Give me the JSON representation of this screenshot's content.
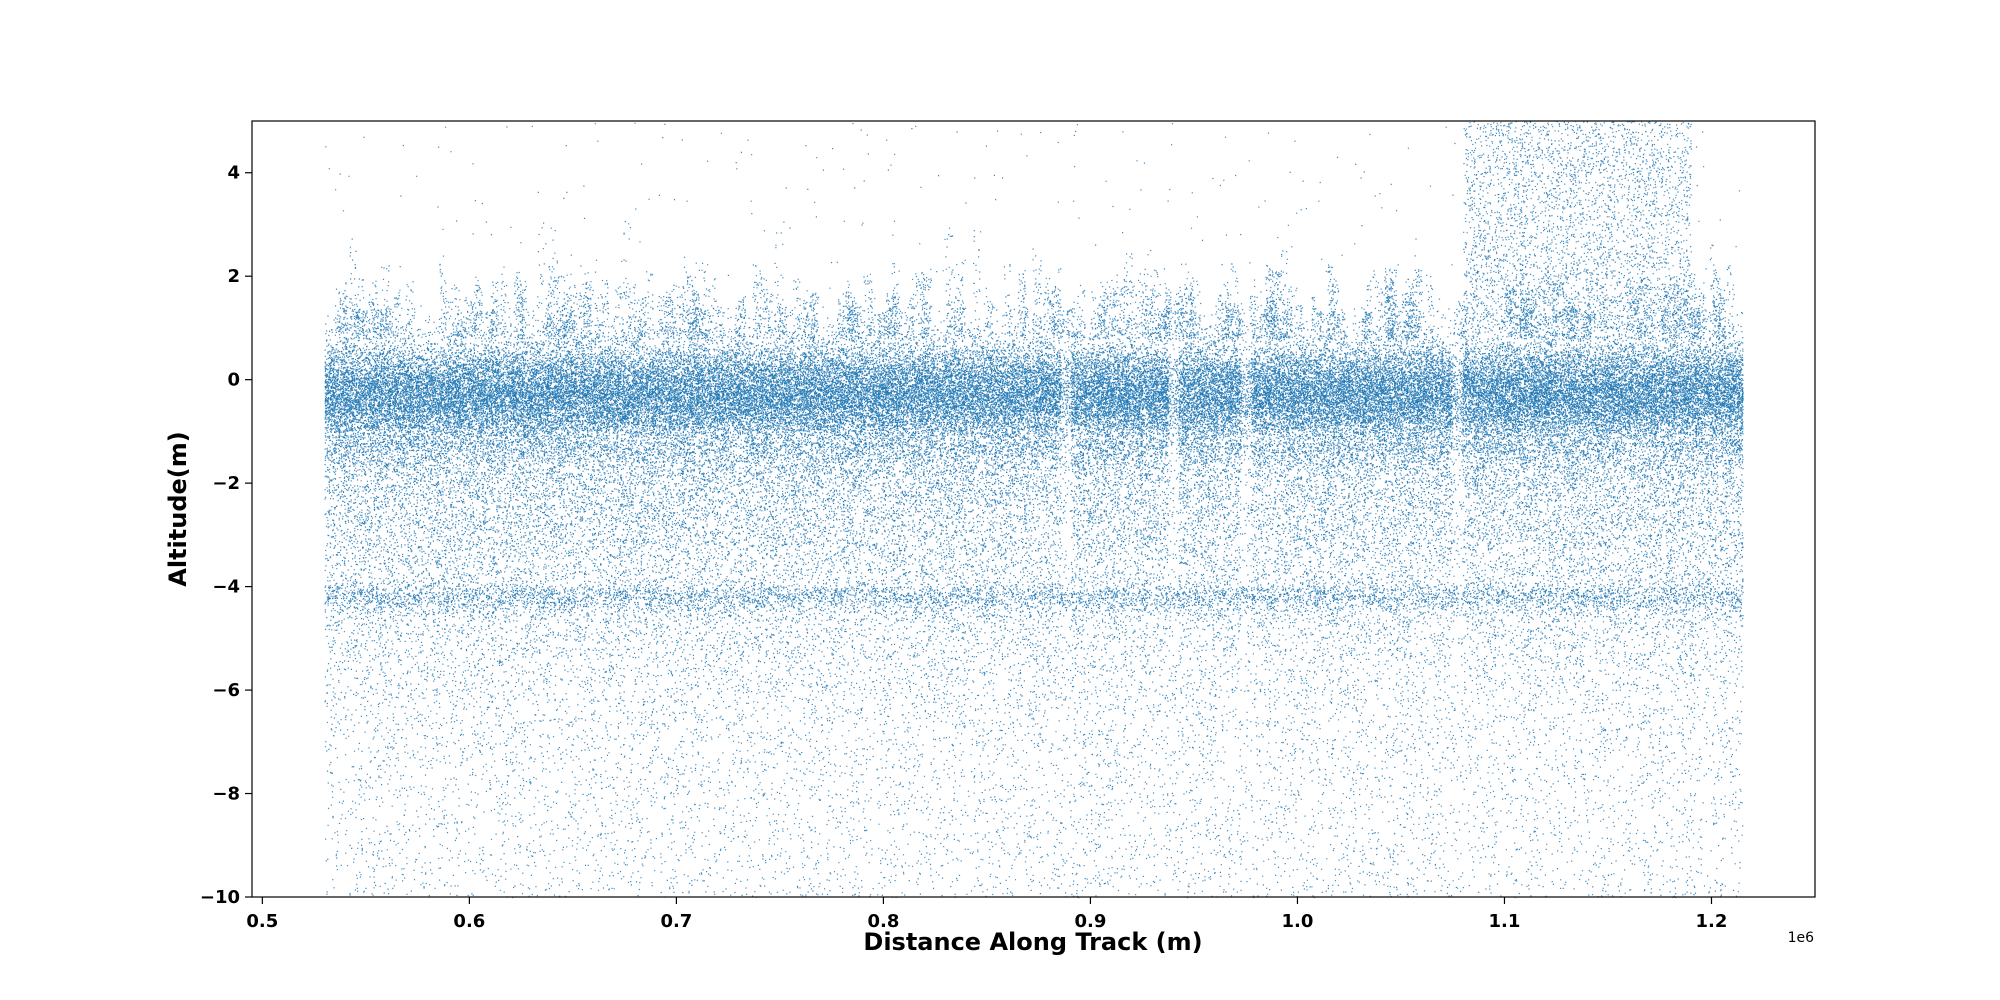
{
  "chart_data": {
    "type": "scatter",
    "title": "",
    "xlabel": "Distance Along Track (m)",
    "ylabel": "Altitude(m)",
    "x_offset_label": "1e6",
    "xlim": [
      0.495,
      1.25
    ],
    "ylim": [
      -10,
      5
    ],
    "x_ticks": [
      0.5,
      0.6,
      0.7,
      0.8,
      0.9,
      1.0,
      1.1,
      1.2
    ],
    "x_tick_labels": [
      "0.5",
      "0.6",
      "0.7",
      "0.8",
      "0.9",
      "1.0",
      "1.1",
      "1.2"
    ],
    "y_ticks": [
      4,
      2,
      0,
      -2,
      -4,
      -6,
      -8,
      -10
    ],
    "y_tick_labels": [
      "4",
      "2",
      "0",
      "−2",
      "−4",
      "−6",
      "−8",
      "−10"
    ],
    "grid": false,
    "legend": "none",
    "marker_color": "#1f77b4",
    "series": [
      {
        "x_range": [
          0.53,
          1.215
        ],
        "dense_band_y": [
          -1.5,
          1.2
        ],
        "typical_spike_top_y": 2.3,
        "sparse_floor_y": -10,
        "note_secondary_band_y": -4.2,
        "elevated_scatter_x": [
          1.08,
          1.19
        ],
        "elevated_scatter_y": [
          1.0,
          5.0
        ],
        "gaps_x": [
          0.888,
          0.94,
          0.975,
          1.077
        ]
      }
    ]
  }
}
